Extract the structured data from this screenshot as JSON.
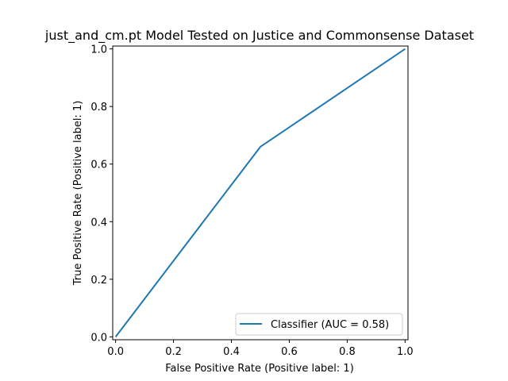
{
  "chart_data": {
    "type": "line",
    "title": "just_and_cm.pt Model Tested on Justice and Commonsense Dataset",
    "xlabel": "False Positive Rate (Positive label: 1)",
    "ylabel": "True Positive Rate (Positive label: 1)",
    "xlim": [
      -0.01,
      1.01
    ],
    "ylim": [
      -0.01,
      1.01
    ],
    "x_ticks": [
      0.0,
      0.2,
      0.4,
      0.6,
      0.8,
      1.0
    ],
    "x_tick_labels": [
      "0.0",
      "0.2",
      "0.4",
      "0.6",
      "0.8",
      "1.0"
    ],
    "y_ticks": [
      0.0,
      0.2,
      0.4,
      0.6,
      0.8,
      1.0
    ],
    "y_tick_labels": [
      "0.0",
      "0.2",
      "0.4",
      "0.6",
      "0.8",
      "1.0"
    ],
    "grid": false,
    "legend_position": "lower-right",
    "series": [
      {
        "name": "Classifier (AUC = 0.58)",
        "color": "#1f77b4",
        "x": [
          0.0,
          0.5,
          1.0
        ],
        "y": [
          0.0,
          0.66,
          1.0
        ]
      }
    ]
  }
}
